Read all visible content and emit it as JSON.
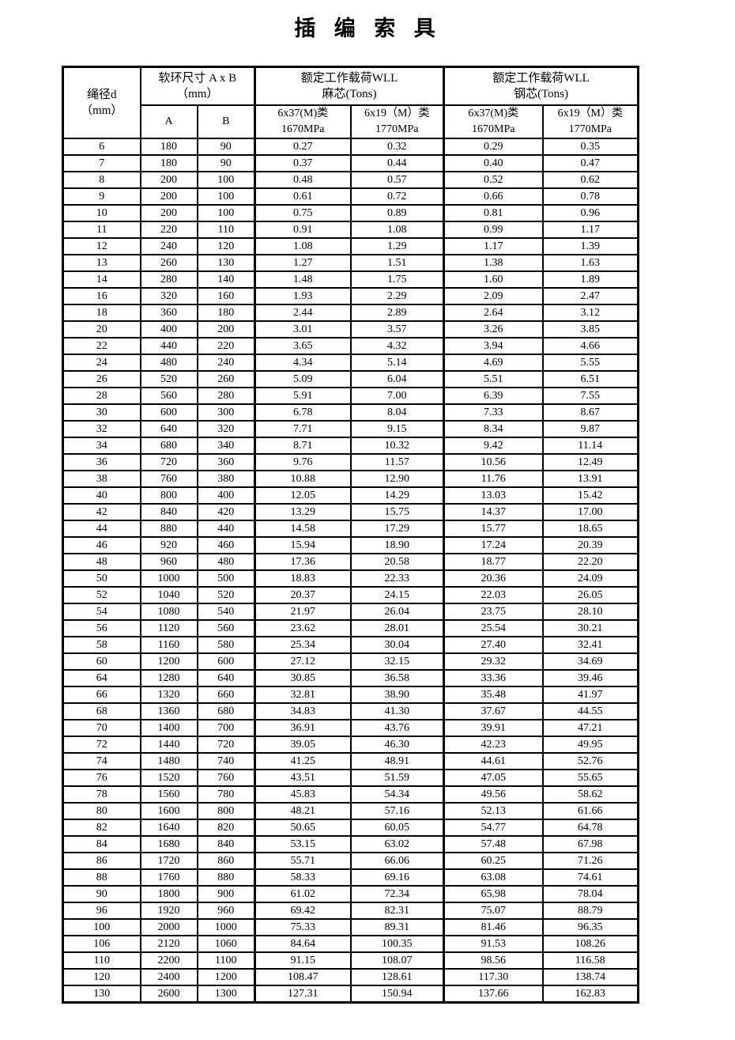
{
  "title": "插 编 索 具",
  "table": {
    "header": {
      "rope_diameter": "绳径d\n（mm）",
      "loop_group": "软环尺寸  A x B\n（mm）",
      "col_a": "A",
      "col_b": "B",
      "fiber_group": "额定工作载荷WLL\n麻芯(Tons)",
      "steel_group": "额定工作载荷WLL\n钢芯(Tons)",
      "fiber_6x37": "6x37(M)类\n1670MPa",
      "fiber_6x19": "6x19（M）类\n1770MPa",
      "steel_6x37": "6x37(M)类\n1670MPa",
      "steel_6x19": "6x19（M）类\n1770MPa"
    },
    "columns": [
      "绳径d(mm)",
      "A",
      "B",
      "麻芯 6x37(M)类 1670MPa",
      "麻芯 6x19(M)类 1770MPa",
      "钢芯 6x37(M)类 1670MPa",
      "钢芯 6x19(M)类 1770MPa"
    ],
    "rows": [
      [
        "6",
        "180",
        "90",
        "0.27",
        "0.32",
        "0.29",
        "0.35"
      ],
      [
        "7",
        "180",
        "90",
        "0.37",
        "0.44",
        "0.40",
        "0.47"
      ],
      [
        "8",
        "200",
        "100",
        "0.48",
        "0.57",
        "0.52",
        "0.62"
      ],
      [
        "9",
        "200",
        "100",
        "0.61",
        "0.72",
        "0.66",
        "0.78"
      ],
      [
        "10",
        "200",
        "100",
        "0.75",
        "0.89",
        "0.81",
        "0.96"
      ],
      [
        "11",
        "220",
        "110",
        "0.91",
        "1.08",
        "0.99",
        "1.17"
      ],
      [
        "12",
        "240",
        "120",
        "1.08",
        "1.29",
        "1.17",
        "1.39"
      ],
      [
        "13",
        "260",
        "130",
        "1.27",
        "1.51",
        "1.38",
        "1.63"
      ],
      [
        "14",
        "280",
        "140",
        "1.48",
        "1.75",
        "1.60",
        "1.89"
      ],
      [
        "16",
        "320",
        "160",
        "1.93",
        "2.29",
        "2.09",
        "2.47"
      ],
      [
        "18",
        "360",
        "180",
        "2.44",
        "2.89",
        "2.64",
        "3.12"
      ],
      [
        "20",
        "400",
        "200",
        "3.01",
        "3.57",
        "3.26",
        "3.85"
      ],
      [
        "22",
        "440",
        "220",
        "3.65",
        "4.32",
        "3.94",
        "4.66"
      ],
      [
        "24",
        "480",
        "240",
        "4.34",
        "5.14",
        "4.69",
        "5.55"
      ],
      [
        "26",
        "520",
        "260",
        "5.09",
        "6.04",
        "5.51",
        "6.51"
      ],
      [
        "28",
        "560",
        "280",
        "5.91",
        "7.00",
        "6.39",
        "7.55"
      ],
      [
        "30",
        "600",
        "300",
        "6.78",
        "8.04",
        "7.33",
        "8.67"
      ],
      [
        "32",
        "640",
        "320",
        "7.71",
        "9.15",
        "8.34",
        "9.87"
      ],
      [
        "34",
        "680",
        "340",
        "8.71",
        "10.32",
        "9.42",
        "11.14"
      ],
      [
        "36",
        "720",
        "360",
        "9.76",
        "11.57",
        "10.56",
        "12.49"
      ],
      [
        "38",
        "760",
        "380",
        "10.88",
        "12.90",
        "11.76",
        "13.91"
      ],
      [
        "40",
        "800",
        "400",
        "12.05",
        "14.29",
        "13.03",
        "15.42"
      ],
      [
        "42",
        "840",
        "420",
        "13.29",
        "15.75",
        "14.37",
        "17.00"
      ],
      [
        "44",
        "880",
        "440",
        "14.58",
        "17.29",
        "15.77",
        "18.65"
      ],
      [
        "46",
        "920",
        "460",
        "15.94",
        "18.90",
        "17.24",
        "20.39"
      ],
      [
        "48",
        "960",
        "480",
        "17.36",
        "20.58",
        "18.77",
        "22.20"
      ],
      [
        "50",
        "1000",
        "500",
        "18.83",
        "22.33",
        "20.36",
        "24.09"
      ],
      [
        "52",
        "1040",
        "520",
        "20.37",
        "24.15",
        "22.03",
        "26.05"
      ],
      [
        "54",
        "1080",
        "540",
        "21.97",
        "26.04",
        "23.75",
        "28.10"
      ],
      [
        "56",
        "1120",
        "560",
        "23.62",
        "28.01",
        "25.54",
        "30.21"
      ],
      [
        "58",
        "1160",
        "580",
        "25.34",
        "30.04",
        "27.40",
        "32.41"
      ],
      [
        "60",
        "1200",
        "600",
        "27.12",
        "32.15",
        "29.32",
        "34.69"
      ],
      [
        "64",
        "1280",
        "640",
        "30.85",
        "36.58",
        "33.36",
        "39.46"
      ],
      [
        "66",
        "1320",
        "660",
        "32.81",
        "38.90",
        "35.48",
        "41.97"
      ],
      [
        "68",
        "1360",
        "680",
        "34.83",
        "41.30",
        "37.67",
        "44.55"
      ],
      [
        "70",
        "1400",
        "700",
        "36.91",
        "43.76",
        "39.91",
        "47.21"
      ],
      [
        "72",
        "1440",
        "720",
        "39.05",
        "46.30",
        "42.23",
        "49.95"
      ],
      [
        "74",
        "1480",
        "740",
        "41.25",
        "48.91",
        "44.61",
        "52.76"
      ],
      [
        "76",
        "1520",
        "760",
        "43.51",
        "51.59",
        "47.05",
        "55.65"
      ],
      [
        "78",
        "1560",
        "780",
        "45.83",
        "54.34",
        "49.56",
        "58.62"
      ],
      [
        "80",
        "1600",
        "800",
        "48.21",
        "57.16",
        "52.13",
        "61.66"
      ],
      [
        "82",
        "1640",
        "820",
        "50.65",
        "60.05",
        "54.77",
        "64.78"
      ],
      [
        "84",
        "1680",
        "840",
        "53.15",
        "63.02",
        "57.48",
        "67.98"
      ],
      [
        "86",
        "1720",
        "860",
        "55.71",
        "66.06",
        "60.25",
        "71.26"
      ],
      [
        "88",
        "1760",
        "880",
        "58.33",
        "69.16",
        "63.08",
        "74.61"
      ],
      [
        "90",
        "1800",
        "900",
        "61.02",
        "72.34",
        "65.98",
        "78.04"
      ],
      [
        "96",
        "1920",
        "960",
        "69.42",
        "82.31",
        "75.07",
        "88.79"
      ],
      [
        "100",
        "2000",
        "1000",
        "75.33",
        "89.31",
        "81.46",
        "96.35"
      ],
      [
        "106",
        "2120",
        "1060",
        "84.64",
        "100.35",
        "91.53",
        "108.26"
      ],
      [
        "110",
        "2200",
        "1100",
        "91.15",
        "108.07",
        "98.56",
        "116.58"
      ],
      [
        "120",
        "2400",
        "1200",
        "108.47",
        "128.61",
        "117.30",
        "138.74"
      ],
      [
        "130",
        "2600",
        "1300",
        "127.31",
        "150.94",
        "137.66",
        "162.83"
      ]
    ]
  }
}
